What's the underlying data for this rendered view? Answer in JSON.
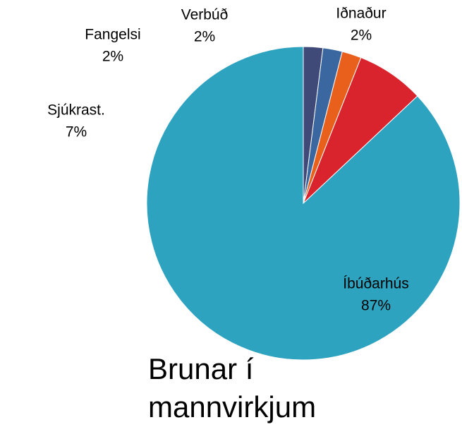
{
  "chart_data": {
    "type": "pie",
    "title": "Brunar í mannvirkjum",
    "categories": [
      "Íbúðarhús",
      "Sjúkrast.",
      "Fangelsi",
      "Verbúð",
      "Iðnaður"
    ],
    "values": [
      87,
      7,
      2,
      2,
      2
    ],
    "value_labels": [
      "87%",
      "7%",
      "2%",
      "2%",
      "2%"
    ],
    "colors": [
      "#2ea3c0",
      "#d9232d",
      "#e8601c",
      "#3a67a0",
      "#3f4a78"
    ]
  }
}
